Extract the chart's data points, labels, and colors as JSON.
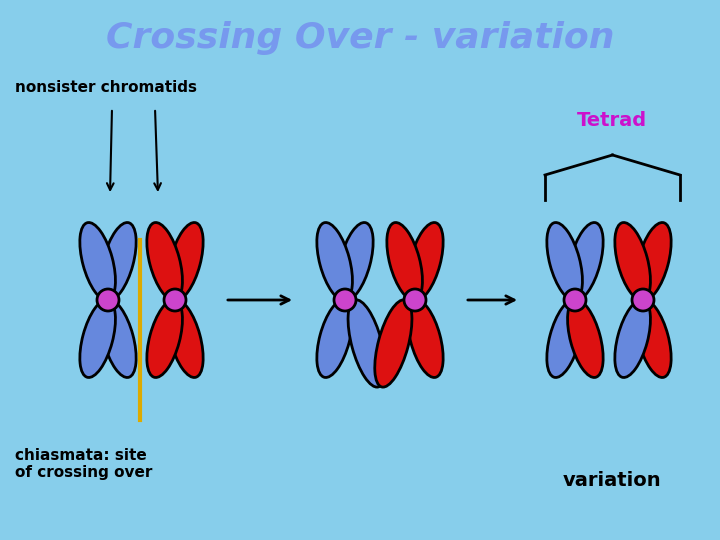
{
  "title": "Crossing Over - variation",
  "title_color": "#7799ee",
  "title_fontsize": 26,
  "bg_color": "#87CEEB",
  "blue_color": "#6688dd",
  "red_color": "#dd1111",
  "centromere_color": "#cc44cc",
  "arrow_color": "#000000",
  "chiasmata_color": "#ddaa00",
  "label_nonsister": "nonsister chromatids",
  "label_chiasmata": "chiasmata: site\nof crossing over",
  "label_tetrad": "Tetrad",
  "label_variation": "variation",
  "tetrad_color": "#cc11cc",
  "lw": 2.0
}
